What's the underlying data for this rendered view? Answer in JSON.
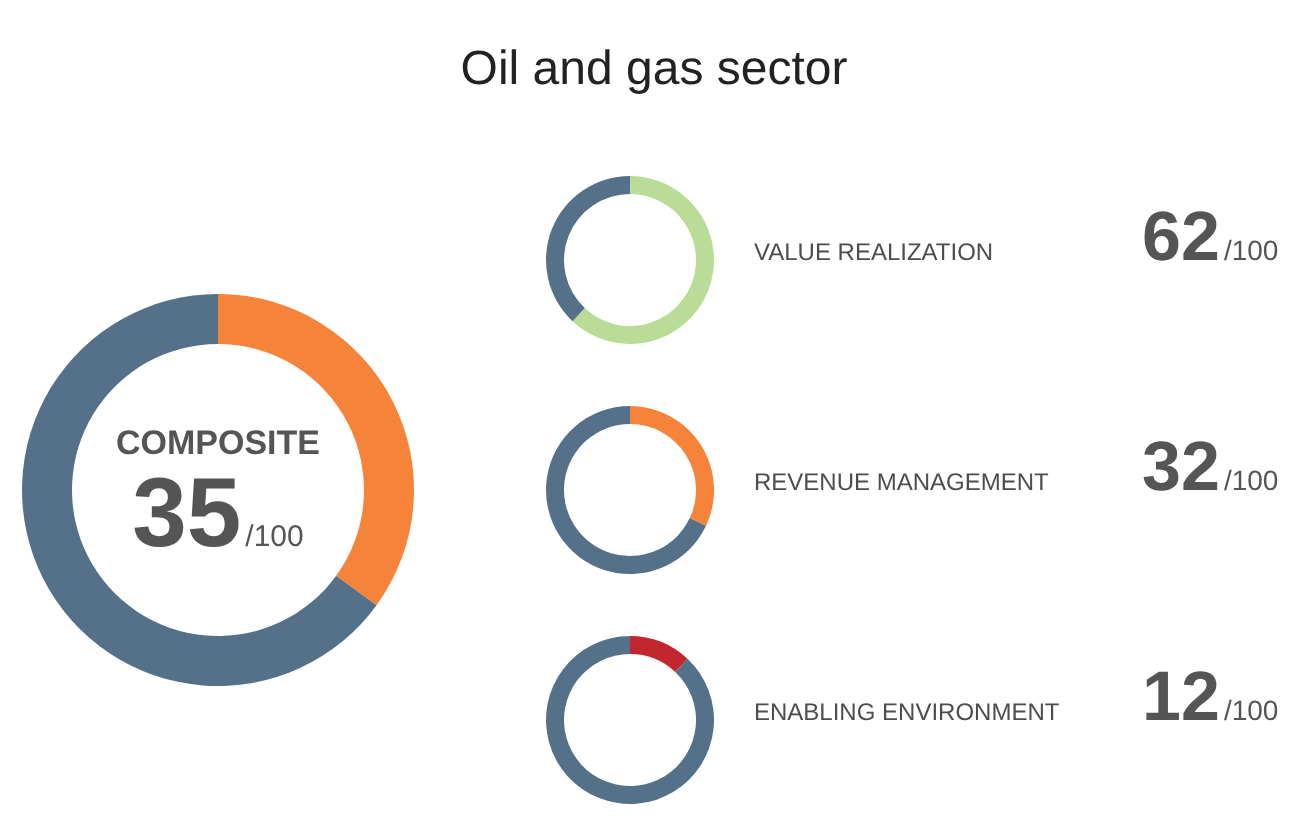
{
  "chart_data": [
    {
      "type": "other",
      "title": "Oil and gas sector"
    },
    {
      "type": "donut",
      "title": "COMPOSITE",
      "categories": [
        null,
        null
      ],
      "values": [
        35,
        65
      ],
      "colors": [
        "#f5843a",
        "#557089"
      ],
      "annotations": [
        "35/100"
      ]
    },
    {
      "type": "donut",
      "title": "VALUE REALIZATION",
      "categories": [
        null,
        null
      ],
      "values": [
        62,
        38
      ],
      "colors": [
        "#b9dc97",
        "#557089"
      ],
      "annotations": [
        "62/100"
      ]
    },
    {
      "type": "donut",
      "title": "REVENUE MANAGEMENT",
      "categories": [
        null,
        null
      ],
      "values": [
        32,
        68
      ],
      "colors": [
        "#f5843a",
        "#557089"
      ],
      "annotations": [
        "32/100"
      ]
    },
    {
      "type": "donut",
      "title": "ENABLING ENVIRONMENT",
      "categories": [
        null,
        null
      ],
      "values": [
        12,
        88
      ],
      "colors": [
        "#c1272d",
        "#557089"
      ],
      "annotations": [
        "12/100"
      ]
    }
  ]
}
